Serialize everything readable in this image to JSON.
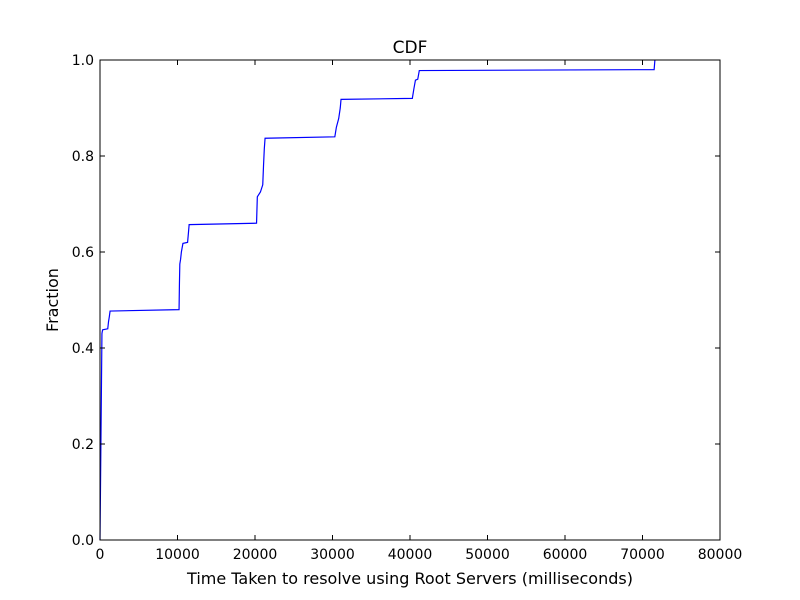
{
  "chart_data": {
    "type": "line",
    "title": "CDF",
    "xlabel": "Time Taken to resolve using Root Servers (milliseconds)",
    "ylabel": "Fraction",
    "xlim": [
      0,
      80000
    ],
    "ylim": [
      0.0,
      1.0
    ],
    "xticks": [
      0,
      10000,
      20000,
      30000,
      40000,
      50000,
      60000,
      70000,
      80000
    ],
    "xtick_labels": [
      "0",
      "10000",
      "20000",
      "30000",
      "40000",
      "50000",
      "60000",
      "70000",
      "80000"
    ],
    "yticks": [
      0.0,
      0.2,
      0.4,
      0.6,
      0.8,
      1.0
    ],
    "ytick_labels": [
      "0.0",
      "0.2",
      "0.4",
      "0.6",
      "0.8",
      "1.0"
    ],
    "grid": false,
    "series": [
      {
        "color": "#0000ff",
        "x": [
          0,
          250,
          300,
          350,
          1000,
          1100,
          1200,
          1300,
          10200,
          10250,
          10300,
          10400,
          10500,
          10700,
          11300,
          11400,
          11500,
          20200,
          20300,
          20700,
          21000,
          21100,
          21200,
          21300,
          30300,
          30500,
          30800,
          31000,
          31100,
          40300,
          40500,
          40700,
          41000,
          41200,
          71500,
          71600
        ],
        "y": [
          0.0,
          0.43,
          0.435,
          0.438,
          0.44,
          0.455,
          0.465,
          0.477,
          0.48,
          0.535,
          0.575,
          0.585,
          0.6,
          0.618,
          0.62,
          0.638,
          0.657,
          0.66,
          0.715,
          0.725,
          0.74,
          0.78,
          0.815,
          0.837,
          0.84,
          0.86,
          0.878,
          0.9,
          0.918,
          0.92,
          0.94,
          0.958,
          0.96,
          0.978,
          0.98,
          1.0
        ]
      }
    ]
  }
}
